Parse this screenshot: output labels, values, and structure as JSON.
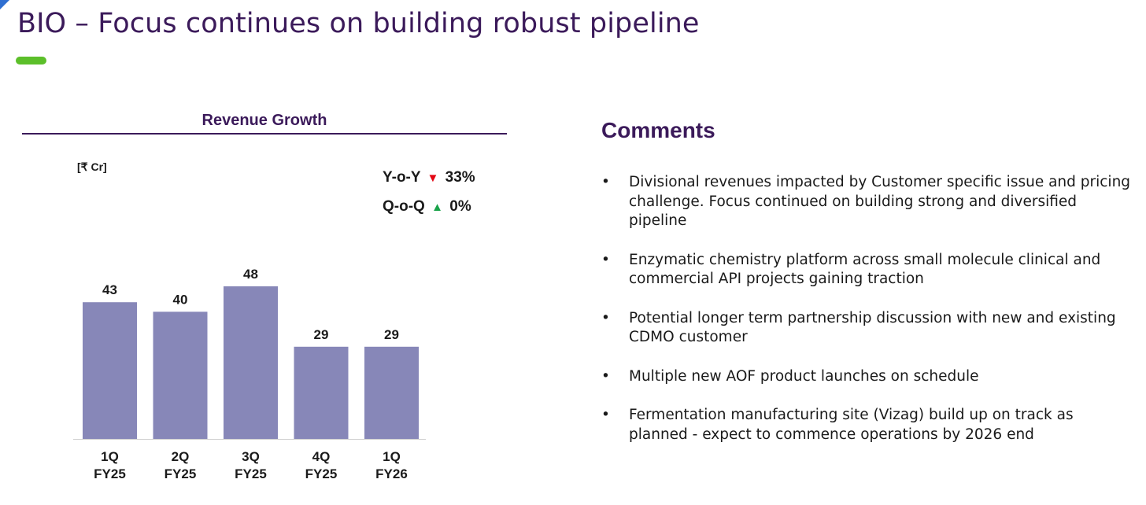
{
  "slide": {
    "title": "BIO – Focus continues on building robust pipeline",
    "colors": {
      "title": "#3b1a5a",
      "accent": "#5cbf2a",
      "bar": "#8787b8",
      "down": "#e30613",
      "up": "#1aa34a"
    }
  },
  "chart_data": {
    "type": "bar",
    "title": "Revenue Growth",
    "unit": "[₹ Cr]",
    "categories": [
      {
        "line1": "1Q",
        "line2": "FY25"
      },
      {
        "line1": "2Q",
        "line2": "FY25"
      },
      {
        "line1": "3Q",
        "line2": "FY25"
      },
      {
        "line1": "4Q",
        "line2": "FY25"
      },
      {
        "line1": "1Q",
        "line2": "FY26"
      }
    ],
    "values": [
      43,
      40,
      48,
      29,
      29
    ],
    "data_labels": [
      "43",
      "40",
      "48",
      "29",
      "29"
    ],
    "ylim": [
      0,
      48
    ],
    "grid": false,
    "legend": "none"
  },
  "growth": {
    "yoy": {
      "label": "Y-o-Y",
      "arrow": "▼",
      "arrow_icon": "down-triangle-icon",
      "value": "33%"
    },
    "qoq": {
      "label": "Q-o-Q",
      "arrow": "▲",
      "arrow_icon": "up-triangle-icon",
      "value": "0%"
    }
  },
  "comments": {
    "title": "Comments",
    "bullet": "•",
    "items": [
      "Divisional revenues impacted by Customer specific issue and pricing challenge. Focus continued on building strong and diversified pipeline",
      "Enzymatic chemistry platform across small molecule clinical and commercial API projects gaining traction",
      "Potential longer term partnership discussion with new and existing CDMO customer",
      "Multiple new AOF product launches on schedule",
      "Fermentation manufacturing site (Vizag) build up on track as planned  -  expect to commence operations by 2026 end"
    ]
  }
}
